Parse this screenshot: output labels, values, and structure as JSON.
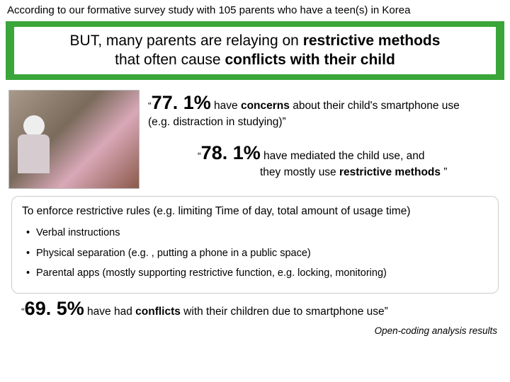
{
  "topLine": "According to our formative survey study with 105 parents who have a teen(s) in Korea",
  "banner": {
    "prefix": "BUT, many parents are relaying on ",
    "bold1": "restrictive  methods",
    "mid": "that often cause ",
    "bold2": "conflicts with their child"
  },
  "stat1": {
    "quote": "“",
    "pct": "77. 1%",
    "after1a": " have ",
    "bold": "concerns",
    "after1b": " about their child's smartphone use",
    "line2": "(e.g. distraction in studying)”"
  },
  "stat2": {
    "quote": "“",
    "pct": "78. 1%",
    "after1": " have mediated the child use, and",
    "line2a": "they mostly use ",
    "bold": "restrictive methods",
    "line2b": " ”"
  },
  "box": {
    "head": "To enforce restrictive rules (e.g. limiting Time of day, total amount of usage time)",
    "items": [
      "Verbal instructions",
      "Physical separation (e.g. , putting a phone in a public space)",
      "Parental apps (mostly supporting restrictive function, e.g. locking, monitoring)"
    ]
  },
  "footerNote": "Open-coding analysis results",
  "bottom": {
    "quote": "“",
    "pct": "69. 5%",
    "after1": " have had ",
    "bold": "conflicts",
    "after2": " with their children due to smartphone use”"
  },
  "colors": {
    "bannerBg": "#3aa63a"
  }
}
